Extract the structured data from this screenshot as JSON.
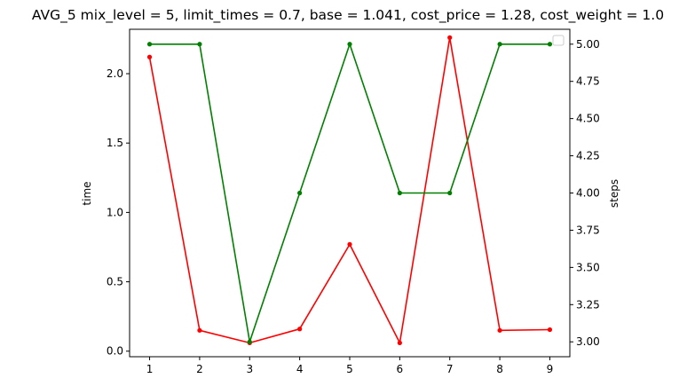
{
  "chart_data": {
    "type": "line",
    "title": "AVG_5 mix_level = 5, limit_times = 0.7, base = 1.041, cost_price = 1.28, cost_weight = 1.0",
    "x": [
      1,
      2,
      3,
      4,
      5,
      6,
      7,
      8,
      9
    ],
    "xlim": [
      0.6,
      9.4
    ],
    "x_ticks": [
      "1",
      "2",
      "3",
      "4",
      "5",
      "6",
      "7",
      "8",
      "9"
    ],
    "left_axis": {
      "label": "time",
      "ylim": [
        -0.04,
        2.32
      ],
      "ticks": [
        0.0,
        0.5,
        1.0,
        1.5,
        2.0
      ],
      "tick_labels": [
        "0.0",
        "0.5",
        "1.0",
        "1.5",
        "2.0"
      ]
    },
    "right_axis": {
      "label": "steps",
      "ylim": [
        2.9,
        5.1
      ],
      "ticks": [
        3.0,
        3.25,
        3.5,
        3.75,
        4.0,
        4.25,
        4.5,
        4.75,
        5.0
      ],
      "tick_labels": [
        "3.00",
        "3.25",
        "3.50",
        "3.75",
        "4.00",
        "4.25",
        "4.50",
        "4.75",
        "5.00"
      ]
    },
    "series": [
      {
        "axis": "left",
        "color": "#ff0000",
        "values": [
          2.12,
          0.15,
          0.06,
          0.16,
          0.77,
          0.06,
          2.26,
          0.15,
          0.155
        ]
      },
      {
        "axis": "right",
        "color": "#008000",
        "values": [
          5,
          5,
          3,
          4,
          5,
          4,
          4,
          5,
          5
        ]
      }
    ],
    "grid": false,
    "legend": {
      "position": "top-right",
      "entries": []
    }
  }
}
